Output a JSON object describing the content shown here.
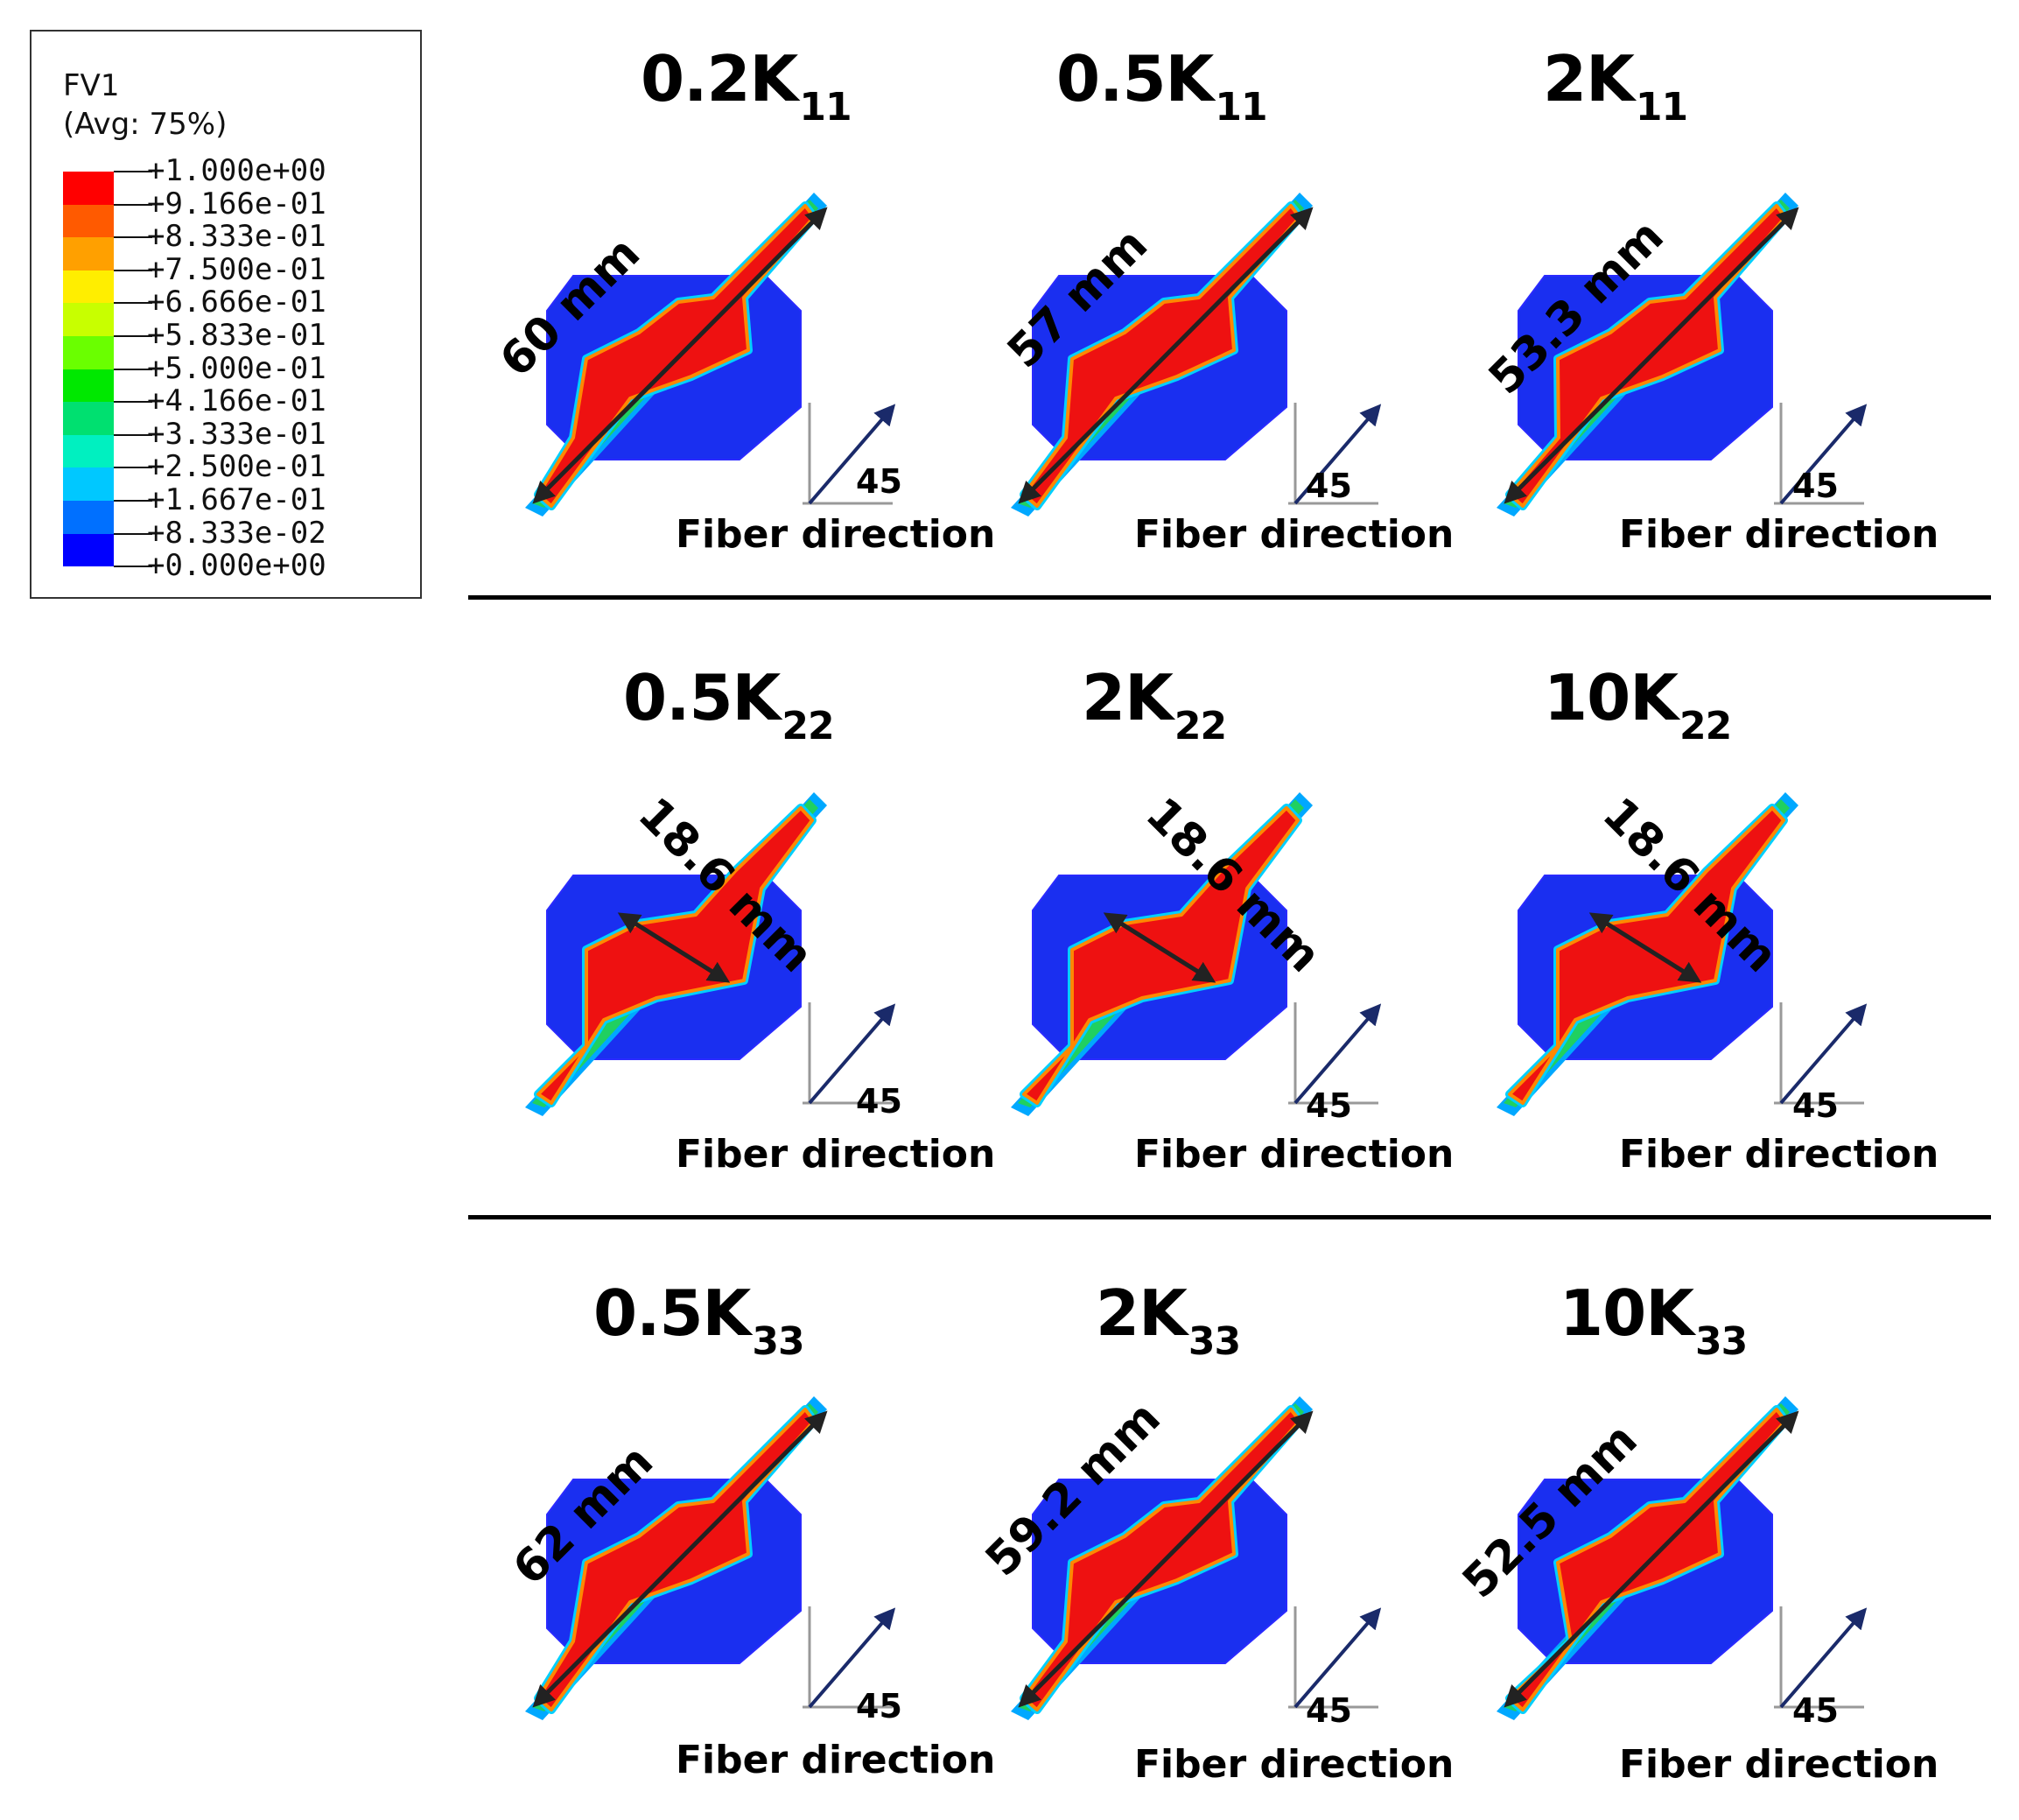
{
  "legend": {
    "variable": "FV1",
    "averaging": "(Avg: 75%)",
    "values": [
      "+1.000e+00",
      "+9.166e-01",
      "+8.333e-01",
      "+7.500e-01",
      "+6.666e-01",
      "+5.833e-01",
      "+5.000e-01",
      "+4.166e-01",
      "+3.333e-01",
      "+2.500e-01",
      "+1.667e-01",
      "+8.333e-02",
      "+0.000e+00"
    ],
    "colors": [
      "#ff0000",
      "#ff5a00",
      "#ffa000",
      "#ffee00",
      "#c8ff00",
      "#6aff00",
      "#00e800",
      "#00e070",
      "#00f0c0",
      "#00c8ff",
      "#0070ff",
      "#0000ff"
    ]
  },
  "axis_angle": "45",
  "fiber_direction_label": "Fiber direction",
  "rows": [
    {
      "panels": [
        {
          "coef": "0.2K",
          "sub": "11",
          "dim": "60 mm"
        },
        {
          "coef": "0.5K",
          "sub": "11",
          "dim": "57 mm"
        },
        {
          "coef": "2K",
          "sub": "11",
          "dim": "53.3 mm"
        }
      ]
    },
    {
      "panels": [
        {
          "coef": "0.5K",
          "sub": "22",
          "dim": "18.6 mm"
        },
        {
          "coef": "2K",
          "sub": "22",
          "dim": "18.6 mm"
        },
        {
          "coef": "10K",
          "sub": "22",
          "dim": "18.6 mm"
        }
      ]
    },
    {
      "panels": [
        {
          "coef": "0.5K",
          "sub": "33",
          "dim": "62 mm"
        },
        {
          "coef": "2K",
          "sub": "33",
          "dim": "59.2 mm"
        },
        {
          "coef": "10K",
          "sub": "33",
          "dim": "52.5 mm"
        }
      ]
    }
  ]
}
